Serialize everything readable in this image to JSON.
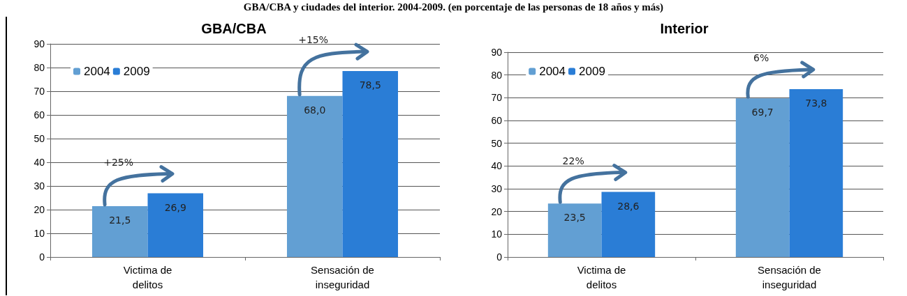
{
  "chart_data": [
    {
      "type": "bar",
      "title": "GBA/CBA",
      "categories": [
        "Victima de\ndelitos",
        "Sensación de\ninseguridad"
      ],
      "series": [
        {
          "name": "2004",
          "color": "#629fd3",
          "values": [
            21.5,
            68.0
          ]
        },
        {
          "name": "2009",
          "color": "#2a7dd6",
          "values": [
            26.9,
            78.5
          ]
        }
      ],
      "value_labels": [
        [
          "21,5",
          "68,0"
        ],
        [
          "26,9",
          "78,5"
        ]
      ],
      "ylim": [
        0,
        90
      ],
      "yticks": [
        0,
        10,
        20,
        30,
        40,
        50,
        60,
        70,
        80,
        90
      ],
      "grid": "y",
      "legend": "top left",
      "annotations": [
        "GBA/CBA y ciudades del interior. 2004-2009. (en porcentaje de las personas de 18 años y más)",
        "+25%",
        "+15%"
      ]
    },
    {
      "type": "bar",
      "title": "Interior",
      "categories": [
        "Victima de\ndelitos",
        "Sensación de\ninseguridad"
      ],
      "series": [
        {
          "name": "2004",
          "color": "#629fd3",
          "values": [
            23.5,
            69.7
          ]
        },
        {
          "name": "2009",
          "color": "#2a7dd6",
          "values": [
            28.6,
            73.8
          ]
        }
      ],
      "value_labels": [
        [
          "23,5",
          "69,7"
        ],
        [
          "28,6",
          "73,8"
        ]
      ],
      "ylim": [
        0,
        90
      ],
      "yticks": [
        0,
        10,
        20,
        30,
        40,
        50,
        60,
        70,
        80,
        90
      ],
      "grid": "y",
      "legend": "top left",
      "annotations": [
        "22%",
        "6%"
      ]
    }
  ]
}
